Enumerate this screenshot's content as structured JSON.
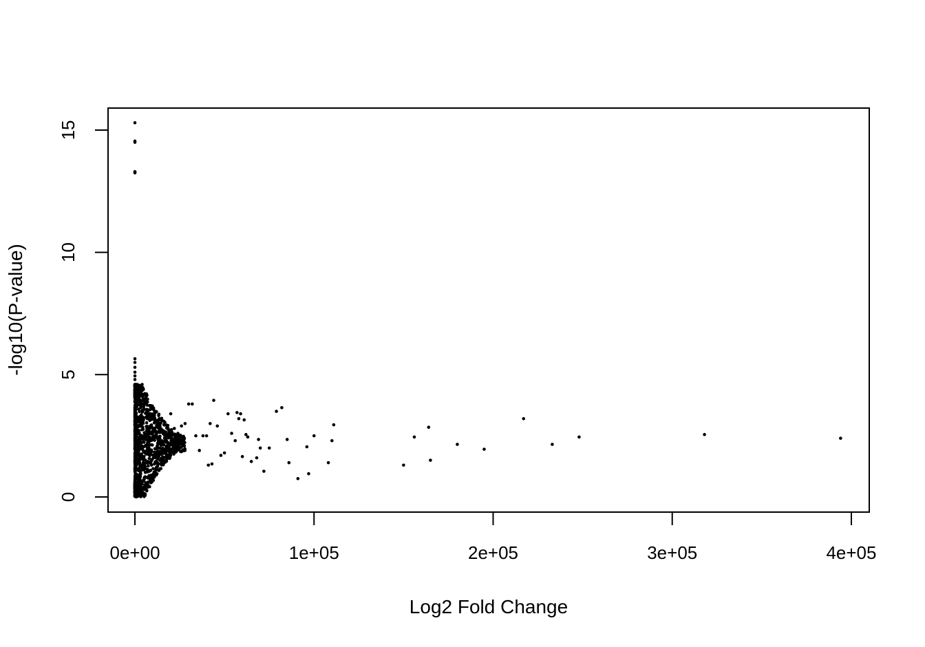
{
  "chart_data": {
    "type": "scatter",
    "title": "",
    "xlabel": "Log2 Fold Change",
    "ylabel": "-log10(P-value)",
    "xlim": [
      -15000,
      410000
    ],
    "ylim": [
      -0.62,
      15.9
    ],
    "x_ticks": [
      {
        "value": 0,
        "label": "0e+00"
      },
      {
        "value": 100000,
        "label": "1e+05"
      },
      {
        "value": 200000,
        "label": "2e+05"
      },
      {
        "value": 300000,
        "label": "3e+05"
      },
      {
        "value": 400000,
        "label": "4e+05"
      }
    ],
    "y_ticks": [
      {
        "value": 0,
        "label": "0"
      },
      {
        "value": 5,
        "label": "5"
      },
      {
        "value": 10,
        "label": "10"
      },
      {
        "value": 15,
        "label": "15"
      }
    ],
    "grid": false,
    "legend": "none",
    "marker_color": "#000000",
    "points": [
      [
        0,
        15.3
      ],
      [
        0,
        14.55
      ],
      [
        0,
        14.5
      ],
      [
        0,
        13.3
      ],
      [
        0,
        13.25
      ],
      [
        0,
        13.28
      ],
      [
        0,
        5.65
      ],
      [
        0,
        5.5
      ],
      [
        0,
        5.3
      ],
      [
        0,
        5.1
      ],
      [
        0,
        4.95
      ],
      [
        0,
        4.8
      ],
      [
        0,
        4.6
      ],
      [
        800,
        4.3
      ],
      [
        1500,
        4.1
      ],
      [
        4000,
        4.2
      ],
      [
        6000,
        3.8
      ],
      [
        5000,
        3.6
      ],
      [
        8000,
        3.4
      ],
      [
        10000,
        3.3
      ],
      [
        12000,
        3.1
      ],
      [
        14000,
        2.9
      ],
      [
        16000,
        2.7
      ],
      [
        18000,
        2.5
      ],
      [
        20000,
        3.4
      ],
      [
        22000,
        2.8
      ],
      [
        24000,
        2.6
      ],
      [
        26000,
        2.9
      ],
      [
        28000,
        3.0
      ],
      [
        30000,
        3.8
      ],
      [
        32000,
        3.8
      ],
      [
        34000,
        2.5
      ],
      [
        36000,
        1.9
      ],
      [
        38000,
        2.5
      ],
      [
        40000,
        2.5
      ],
      [
        41000,
        1.3
      ],
      [
        42000,
        3.0
      ],
      [
        43000,
        1.35
      ],
      [
        44000,
        3.95
      ],
      [
        46000,
        2.9
      ],
      [
        48000,
        1.7
      ],
      [
        50000,
        1.8
      ],
      [
        52000,
        3.4
      ],
      [
        54000,
        2.6
      ],
      [
        56000,
        2.3
      ],
      [
        57000,
        3.45
      ],
      [
        58000,
        3.2
      ],
      [
        59000,
        3.4
      ],
      [
        60000,
        1.65
      ],
      [
        61000,
        3.15
      ],
      [
        62000,
        2.55
      ],
      [
        63000,
        2.45
      ],
      [
        65000,
        1.45
      ],
      [
        68000,
        1.6
      ],
      [
        69000,
        2.35
      ],
      [
        70000,
        2.0
      ],
      [
        72000,
        1.05
      ],
      [
        75000,
        2.0
      ],
      [
        79000,
        3.5
      ],
      [
        82000,
        3.65
      ],
      [
        85000,
        2.35
      ],
      [
        86000,
        1.4
      ],
      [
        91000,
        0.75
      ],
      [
        96000,
        2.05
      ],
      [
        97000,
        0.95
      ],
      [
        100000,
        2.5
      ],
      [
        108000,
        1.4
      ],
      [
        110000,
        2.3
      ],
      [
        111000,
        2.95
      ],
      [
        150000,
        1.3
      ],
      [
        156000,
        2.45
      ],
      [
        164000,
        2.85
      ],
      [
        165000,
        1.5
      ],
      [
        180000,
        2.15
      ],
      [
        195000,
        1.95
      ],
      [
        217000,
        3.2
      ],
      [
        233000,
        2.15
      ],
      [
        248000,
        2.45
      ],
      [
        318000,
        2.55
      ],
      [
        394000,
        2.4
      ]
    ]
  }
}
